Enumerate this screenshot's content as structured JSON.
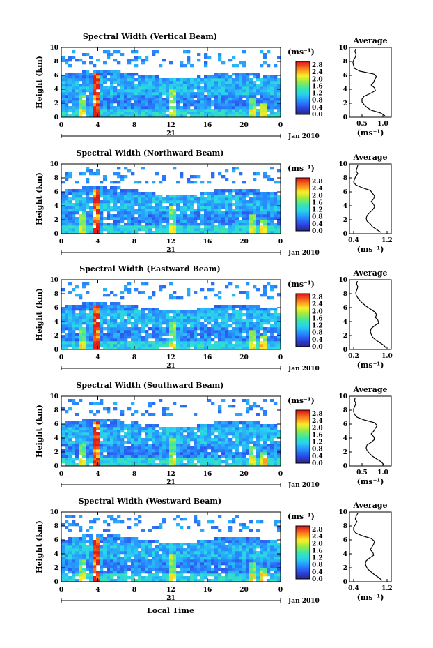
{
  "footer": {
    "xlabel": "Local Time"
  },
  "chart_data": [
    {
      "type": "heatmap",
      "title": "Spectral Width (Vertical Beam)",
      "ylabel": "Height (km)",
      "xlim": [
        0,
        24
      ],
      "ylim": [
        0,
        10
      ],
      "x_ticks": [
        "0",
        "4",
        "8",
        "12",
        "16",
        "20",
        "0"
      ],
      "y_ticks": [
        "0",
        "2",
        "4",
        "6",
        "8",
        "10"
      ],
      "date_day": "21",
      "date_month": "Jan 2010",
      "colorbar": {
        "unit": "(ms⁻¹)",
        "ticks": [
          "0.0",
          "0.4",
          "0.8",
          "1.2",
          "1.6",
          "2.0",
          "2.4",
          "2.8"
        ],
        "range": [
          0,
          3.0
        ]
      },
      "profile": {
        "title": "Average",
        "xlabel": "(ms⁻¹)",
        "x_ticks": [
          "0.5",
          "1.0"
        ],
        "xlim": [
          0.2,
          1.2
        ],
        "heights": [
          0.2,
          0.6,
          1.0,
          1.4,
          1.8,
          2.2,
          2.6,
          3.0,
          3.4,
          3.8,
          4.2,
          4.6,
          5.0,
          5.4,
          5.8,
          6.2,
          6.6,
          7.0,
          7.4,
          7.8,
          8.2,
          8.6,
          9.0,
          9.4,
          9.8
        ],
        "values": [
          1.05,
          0.95,
          0.72,
          0.62,
          0.55,
          0.5,
          0.5,
          0.55,
          0.7,
          0.82,
          0.8,
          0.72,
          0.78,
          0.8,
          0.85,
          0.78,
          0.45,
          0.32,
          0.3,
          0.28,
          0.3,
          0.34,
          0.36,
          0.33,
          0.35
        ]
      }
    },
    {
      "type": "heatmap",
      "title": "Spectral Width (Northward Beam)",
      "ylabel": "Height (km)",
      "xlim": [
        0,
        24
      ],
      "ylim": [
        0,
        10
      ],
      "x_ticks": [
        "0",
        "4",
        "8",
        "12",
        "16",
        "20",
        "0"
      ],
      "y_ticks": [
        "0",
        "2",
        "4",
        "6",
        "8",
        "10"
      ],
      "date_day": "21",
      "date_month": "Jan 2010",
      "colorbar": {
        "unit": "(ms⁻¹)",
        "ticks": [
          "0.0",
          "0.4",
          "0.8",
          "1.2",
          "1.6",
          "2.0",
          "2.4",
          "2.8"
        ],
        "range": [
          0,
          3.0
        ]
      },
      "profile": {
        "title": "Average",
        "xlabel": "(ms⁻¹)",
        "x_ticks": [
          "0.4",
          "1.2"
        ],
        "xlim": [
          0.3,
          1.3
        ],
        "heights": [
          0.2,
          0.6,
          1.0,
          1.4,
          1.8,
          2.2,
          2.6,
          3.0,
          3.4,
          3.8,
          4.2,
          4.6,
          5.0,
          5.4,
          5.8,
          6.2,
          6.6,
          7.0,
          7.4,
          7.8,
          8.2,
          8.6,
          9.0,
          9.4,
          9.8
        ],
        "values": [
          1.05,
          0.95,
          0.85,
          0.8,
          0.72,
          0.7,
          0.72,
          0.78,
          0.85,
          0.9,
          0.88,
          0.82,
          0.88,
          0.9,
          0.85,
          0.8,
          0.6,
          0.45,
          0.4,
          0.42,
          0.45,
          0.5,
          0.46,
          0.48,
          0.5
        ]
      }
    },
    {
      "type": "heatmap",
      "title": "Spectral Width (Eastward Beam)",
      "ylabel": "Height (km)",
      "xlim": [
        0,
        24
      ],
      "ylim": [
        0,
        10
      ],
      "x_ticks": [
        "0",
        "4",
        "8",
        "12",
        "16",
        "20",
        "0"
      ],
      "y_ticks": [
        "0",
        "2",
        "4",
        "6",
        "8",
        "10"
      ],
      "date_day": "21",
      "date_month": "Jan 2010",
      "colorbar": {
        "unit": "(ms⁻¹)",
        "ticks": [
          "0.0",
          "0.4",
          "0.8",
          "1.2",
          "1.6",
          "2.0",
          "2.4",
          "2.8"
        ],
        "range": [
          0,
          3.0
        ]
      },
      "profile": {
        "title": "Average",
        "xlabel": "(ms⁻¹)",
        "x_ticks": [
          "0.2",
          "1.0"
        ],
        "xlim": [
          0.1,
          1.1
        ],
        "heights": [
          0.2,
          0.6,
          1.0,
          1.4,
          1.8,
          2.2,
          2.6,
          3.0,
          3.4,
          3.8,
          4.2,
          4.6,
          5.0,
          5.4,
          5.8,
          6.2,
          6.6,
          7.0,
          7.4,
          7.8,
          8.2,
          8.6,
          9.0,
          9.4,
          9.8
        ],
        "values": [
          0.98,
          0.92,
          0.82,
          0.72,
          0.65,
          0.62,
          0.6,
          0.62,
          0.7,
          0.8,
          0.78,
          0.72,
          0.75,
          0.7,
          0.6,
          0.5,
          0.42,
          0.35,
          0.3,
          0.26,
          0.25,
          0.28,
          0.3,
          0.27,
          0.29
        ]
      }
    },
    {
      "type": "heatmap",
      "title": "Spectral Width (Southward Beam)",
      "ylabel": "Height (km)",
      "xlim": [
        0,
        24
      ],
      "ylim": [
        0,
        10
      ],
      "x_ticks": [
        "0",
        "4",
        "8",
        "12",
        "16",
        "20",
        "0"
      ],
      "y_ticks": [
        "0",
        "2",
        "4",
        "6",
        "8",
        "10"
      ],
      "date_day": "21",
      "date_month": "Jan 2010",
      "colorbar": {
        "unit": "(ms⁻¹)",
        "ticks": [
          "0.0",
          "0.4",
          "0.8",
          "1.2",
          "1.6",
          "2.0",
          "2.4",
          "2.8"
        ],
        "range": [
          0,
          3.0
        ]
      },
      "profile": {
        "title": "Average",
        "xlabel": "(ms⁻¹)",
        "x_ticks": [
          "0.5",
          "1.0"
        ],
        "xlim": [
          0.2,
          1.2
        ],
        "heights": [
          0.2,
          0.6,
          1.0,
          1.4,
          1.8,
          2.2,
          2.6,
          3.0,
          3.4,
          3.8,
          4.2,
          4.6,
          5.0,
          5.4,
          5.8,
          6.2,
          6.6,
          7.0,
          7.4,
          7.8,
          8.2,
          8.6,
          9.0,
          9.4,
          9.8
        ],
        "values": [
          1.02,
          0.96,
          0.85,
          0.75,
          0.68,
          0.62,
          0.6,
          0.62,
          0.72,
          0.8,
          0.78,
          0.72,
          0.78,
          0.82,
          0.86,
          0.8,
          0.55,
          0.38,
          0.32,
          0.3,
          0.3,
          0.33,
          0.35,
          0.32,
          0.34
        ]
      }
    },
    {
      "type": "heatmap",
      "title": "Spectral Width (Westward Beam)",
      "ylabel": "Height (km)",
      "xlim": [
        0,
        24
      ],
      "ylim": [
        0,
        10
      ],
      "x_ticks": [
        "0",
        "4",
        "8",
        "12",
        "16",
        "20",
        "0"
      ],
      "y_ticks": [
        "0",
        "2",
        "4",
        "6",
        "8",
        "10"
      ],
      "date_day": "21",
      "date_month": "Jan 2010",
      "colorbar": {
        "unit": "(ms⁻¹)",
        "ticks": [
          "0.0",
          "0.4",
          "0.8",
          "1.2",
          "1.6",
          "2.0",
          "2.4",
          "2.8"
        ],
        "range": [
          0,
          3.0
        ]
      },
      "profile": {
        "title": "Average",
        "xlabel": "(ms⁻¹)",
        "x_ticks": [
          "0.4",
          "1.2"
        ],
        "xlim": [
          0.3,
          1.3
        ],
        "heights": [
          0.2,
          0.6,
          1.0,
          1.4,
          1.8,
          2.2,
          2.6,
          3.0,
          3.4,
          3.8,
          4.2,
          4.6,
          5.0,
          5.4,
          5.8,
          6.2,
          6.6,
          7.0,
          7.4,
          7.8,
          8.2,
          8.6,
          9.0,
          9.4,
          9.8
        ],
        "values": [
          1.08,
          1.0,
          0.9,
          0.82,
          0.74,
          0.7,
          0.68,
          0.7,
          0.78,
          0.88,
          0.86,
          0.8,
          0.84,
          0.88,
          0.9,
          0.82,
          0.6,
          0.45,
          0.4,
          0.4,
          0.44,
          0.48,
          0.44,
          0.46,
          0.5
        ]
      }
    }
  ]
}
